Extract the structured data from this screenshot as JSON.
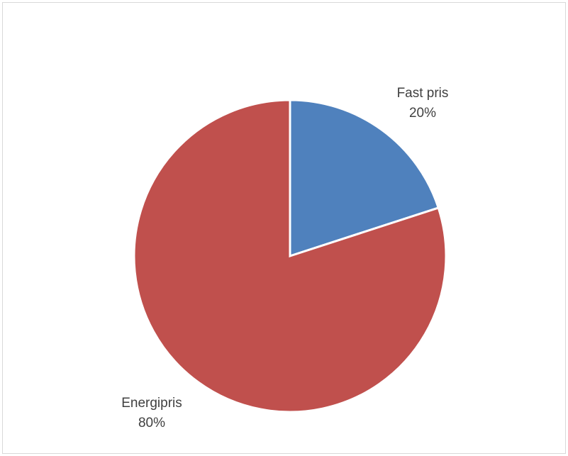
{
  "chart_data": {
    "type": "pie",
    "slices": [
      {
        "label": "Fast pris",
        "value": 20,
        "value_label": "20%",
        "color": "#4f81bd"
      },
      {
        "label": "Energipris",
        "value": 80,
        "value_label": "80%",
        "color": "#c0504d"
      }
    ],
    "start_angle_deg": 0,
    "direction": "clockwise",
    "legend": "none",
    "data_labels": "outside"
  }
}
